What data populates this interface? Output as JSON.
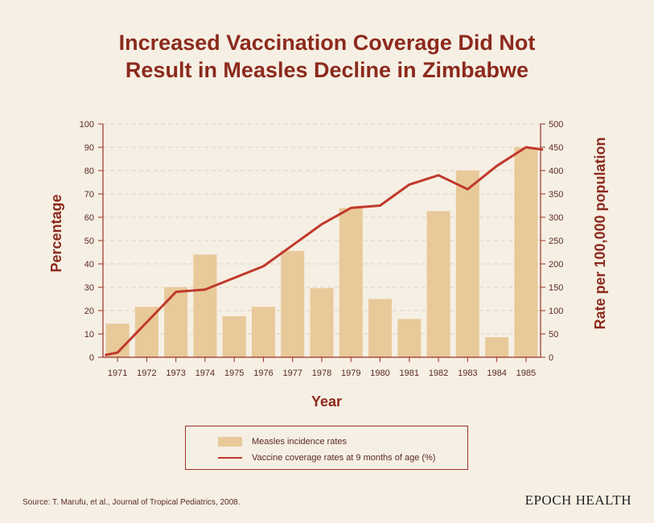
{
  "chart_data": {
    "type": "bar",
    "title_line1": "Increased Vaccination Coverage Did Not",
    "title_line2": "Result in Measles Decline in Zimbabwe",
    "xlabel": "Year",
    "ylabel_left": "Percentage",
    "ylabel_right": "Rate per 100,000 population",
    "categories": [
      "1971",
      "1972",
      "1973",
      "1974",
      "1975",
      "1976",
      "1977",
      "1978",
      "1979",
      "1980",
      "1981",
      "1982",
      "1983",
      "1984",
      "1985"
    ],
    "ylim_left": [
      0,
      100
    ],
    "yticks_left": [
      0,
      10,
      20,
      30,
      40,
      50,
      60,
      70,
      80,
      90,
      100
    ],
    "ylim_right": [
      0,
      500
    ],
    "yticks_right": [
      0,
      50,
      100,
      150,
      200,
      250,
      300,
      350,
      400,
      450,
      500
    ],
    "grid": true,
    "series": [
      {
        "name": "Measles incidence rates",
        "kind": "bar",
        "axis": "right",
        "color": "#e8c99a",
        "values": [
          72,
          108,
          150,
          220,
          88,
          108,
          228,
          148,
          320,
          125,
          82,
          313,
          400,
          43,
          450
        ]
      },
      {
        "name": "Vaccine coverage rates at 9 months of age (%)",
        "kind": "line",
        "axis": "left",
        "color": "#c0392b",
        "x": [
          1970.6,
          1971,
          1972,
          1973,
          1974,
          1975,
          1976,
          1977,
          1978,
          1979,
          1980,
          1981,
          1982,
          1983,
          1984,
          1985,
          1985.55
        ],
        "values": [
          1,
          2,
          15,
          28,
          29,
          34,
          39,
          48,
          57,
          64,
          65,
          74,
          78,
          72,
          82,
          90,
          89
        ]
      }
    ]
  },
  "footer": {
    "source": "Source: T. Marufu, et al., Journal of Tropical Pediatrics, 2008.",
    "brand": "EPOCH HEALTH"
  }
}
